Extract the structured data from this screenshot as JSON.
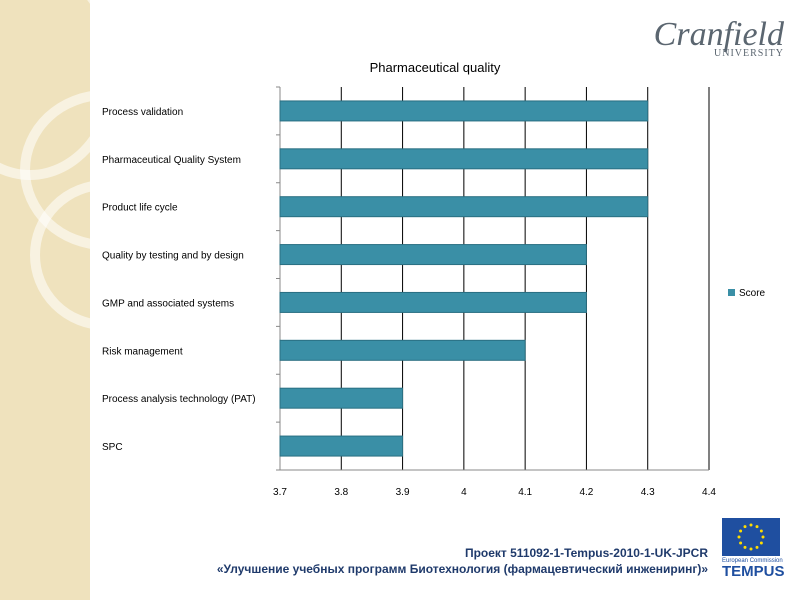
{
  "logo": {
    "name": "Cranfield",
    "sub": "UNIVERSITY"
  },
  "chart_data": {
    "type": "bar",
    "orientation": "horizontal",
    "title": "Pharmaceutical quality",
    "categories": [
      "Process validation",
      "Pharmaceutical Quality System",
      "Product life cycle",
      "Quality by testing and by design",
      "GMP and associated systems",
      "Risk management",
      "Process analysis technology (PAT)",
      "SPC"
    ],
    "series": [
      {
        "name": "Score",
        "values": [
          4.3,
          4.3,
          4.3,
          4.2,
          4.2,
          4.1,
          3.9,
          3.9
        ],
        "color": "#3a8fa6"
      }
    ],
    "xlim": [
      3.7,
      4.4
    ],
    "xticks": [
      "3.7",
      "3.8",
      "3.9",
      "4",
      "4.1",
      "4.2",
      "4.3",
      "4.4"
    ],
    "grid": true,
    "legend": "right"
  },
  "footer": {
    "line1": "Проект   511092-1-Tempus-2010-1-UK-JPCR",
    "line2": "«Улучшение учебных программ Биотехнология (фармацевтический инжениринг)»"
  },
  "tempus": {
    "small": "European Commission",
    "big": "TEMPUS"
  }
}
